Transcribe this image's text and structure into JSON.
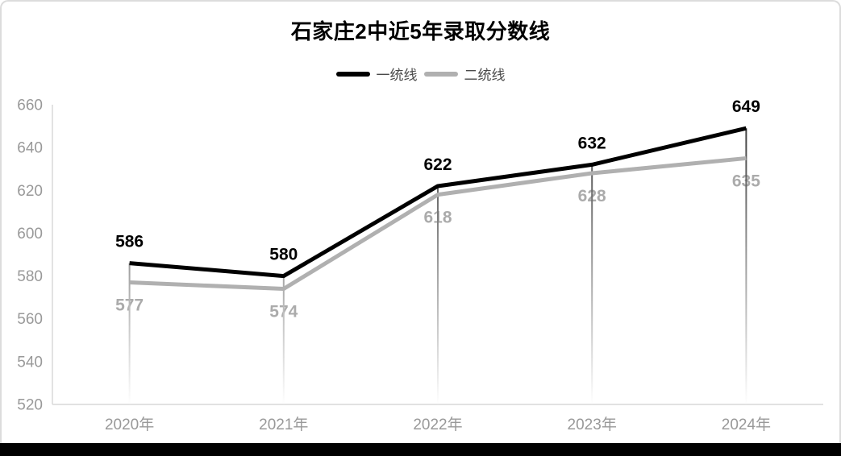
{
  "chart_data": {
    "type": "line",
    "title": "石家庄2中近5年录取分数线",
    "categories": [
      "2020年",
      "2021年",
      "2022年",
      "2023年",
      "2024年"
    ],
    "series": [
      {
        "name": "一统线",
        "color": "#000000",
        "label_color": "#000000",
        "values": [
          586,
          580,
          622,
          632,
          649
        ],
        "label_position": "above"
      },
      {
        "name": "二统线",
        "color": "#b0b0b0",
        "label_color": "#ababab",
        "values": [
          577,
          574,
          618,
          628,
          635
        ],
        "label_position": "below"
      }
    ],
    "ylim": [
      520,
      660
    ],
    "yticks": [
      520,
      540,
      560,
      580,
      600,
      620,
      640,
      660
    ],
    "xlabel": "",
    "ylabel": "",
    "grid": false,
    "legend_position": "top",
    "axis_color": "#d9d9d9",
    "tick_label_color": "#999999",
    "drop_line_gradient": [
      "#2e2e2e",
      "#ffffff"
    ]
  },
  "frame": {
    "background": "#ffffff",
    "border_color": "#dcdcdc",
    "bottom_bar_color": "#000000"
  }
}
